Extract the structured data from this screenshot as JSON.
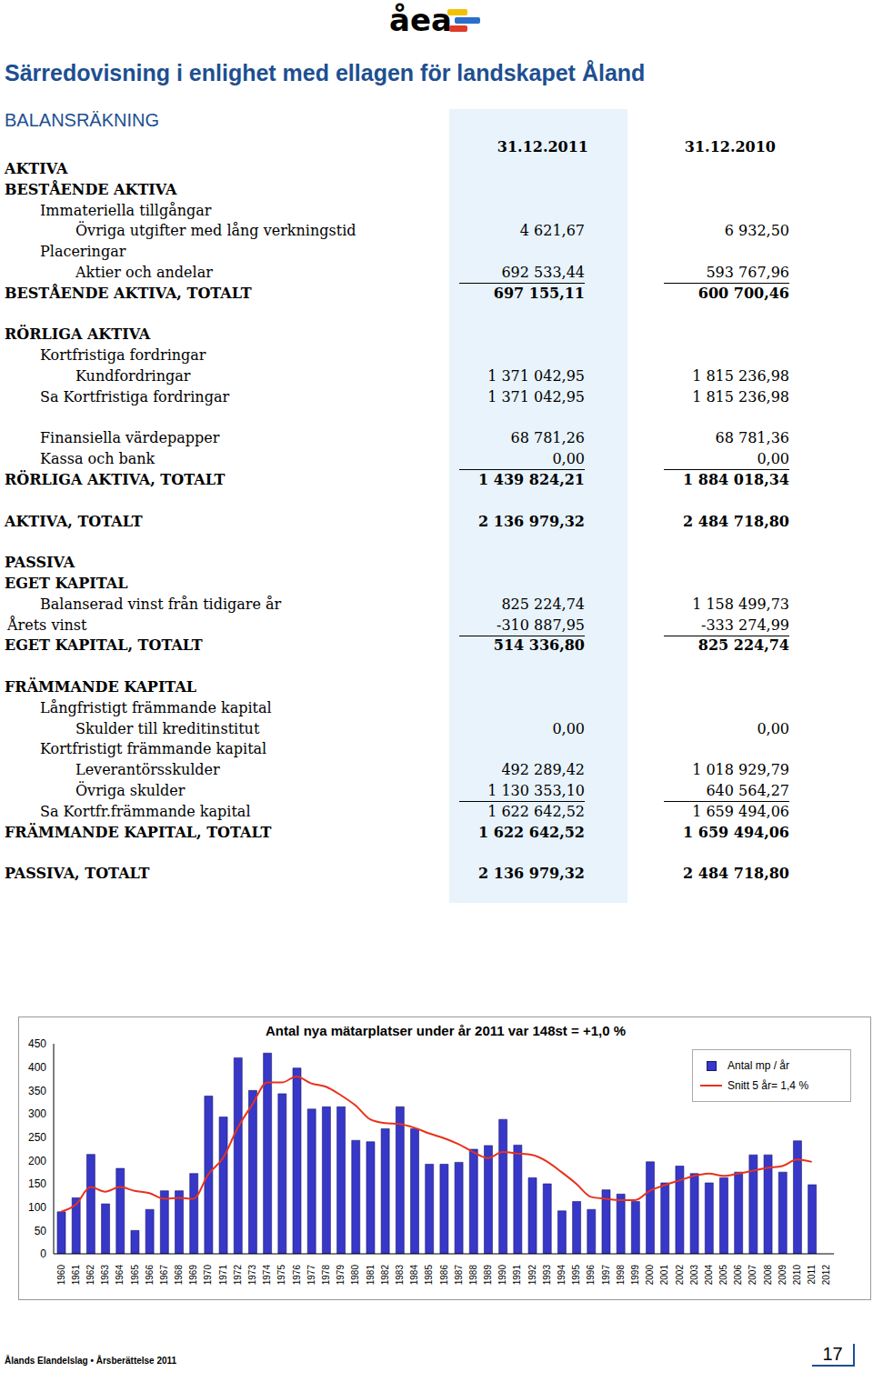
{
  "header": {
    "logo": "åea",
    "title": "Särredovisning i enlighet med ellagen för landskapet Åland",
    "subtitle": "BALANSRÄKNING"
  },
  "table": {
    "columns": [
      "31.12.2011",
      "31.12.2010"
    ],
    "rows": [
      {
        "label": "AKTIVA",
        "kind": "section"
      },
      {
        "label": "BESTÅENDE AKTIVA",
        "kind": "section"
      },
      {
        "label": "Immateriella tillgångar",
        "kind": "group"
      },
      {
        "label": "Övriga utgifter med lång verkningstid",
        "kind": "item",
        "values": [
          "4 621,67",
          "6 932,50"
        ]
      },
      {
        "label": "Placeringar",
        "kind": "group"
      },
      {
        "label": "Aktier och andelar",
        "kind": "item",
        "values": [
          "692 533,44",
          "593 767,96"
        ],
        "rule": true
      },
      {
        "label": "BESTÅENDE AKTIVA, TOTALT",
        "kind": "total",
        "values": [
          "697 155,11",
          "600 700,46"
        ]
      },
      {
        "label": "RÖRLIGA AKTIVA",
        "kind": "section",
        "gap": true
      },
      {
        "label": "Kortfristiga fordringar",
        "kind": "group"
      },
      {
        "label": "Kundfordringar",
        "kind": "item",
        "values": [
          "1 371 042,95",
          "1 815 236,98"
        ]
      },
      {
        "label": "Sa Kortfristiga fordringar",
        "kind": "group",
        "values": [
          "1 371 042,95",
          "1 815 236,98"
        ]
      },
      {
        "label": "Finansiella värdepapper",
        "kind": "group",
        "values": [
          "68 781,26",
          "68 781,36"
        ],
        "gap": true
      },
      {
        "label": "Kassa och bank",
        "kind": "group",
        "values": [
          "0,00",
          "0,00"
        ],
        "rule": true
      },
      {
        "label": "RÖRLIGA AKTIVA, TOTALT",
        "kind": "total",
        "values": [
          "1 439 824,21",
          "1 884 018,34"
        ]
      },
      {
        "label": "AKTIVA, TOTALT",
        "kind": "total",
        "values": [
          "2 136 979,32",
          "2 484 718,80"
        ],
        "gap": true
      },
      {
        "label": "PASSIVA",
        "kind": "section",
        "gap": true
      },
      {
        "label": "EGET KAPITAL",
        "kind": "section"
      },
      {
        "label": "Balanserad vinst från tidigare år",
        "kind": "group",
        "values": [
          "825 224,74",
          "1 158 499,73"
        ]
      },
      {
        "label": "Årets vinst",
        "kind": "plain",
        "values": [
          "-310 887,95",
          "-333 274,99"
        ],
        "rule": true
      },
      {
        "label": "EGET KAPITAL, TOTALT",
        "kind": "total",
        "values": [
          "514 336,80",
          "825 224,74"
        ]
      },
      {
        "label": "FRÄMMANDE KAPITAL",
        "kind": "section",
        "gap": true
      },
      {
        "label": "Långfristigt främmande kapital",
        "kind": "group"
      },
      {
        "label": "Skulder till kreditinstitut",
        "kind": "item",
        "values": [
          "0,00",
          "0,00"
        ]
      },
      {
        "label": "Kortfristigt främmande kapital",
        "kind": "group"
      },
      {
        "label": "Leverantörsskulder",
        "kind": "item",
        "values": [
          "492 289,42",
          "1 018 929,79"
        ]
      },
      {
        "label": "Övriga skulder",
        "kind": "item",
        "values": [
          "1 130 353,10",
          "640 564,27"
        ],
        "rule": true
      },
      {
        "label": "Sa Kortfr.främmande kapital",
        "kind": "group",
        "values": [
          "1 622 642,52",
          "1 659 494,06"
        ]
      },
      {
        "label": "FRÄMMANDE KAPITAL, TOTALT",
        "kind": "total",
        "values": [
          "1 622 642,52",
          "1 659 494,06"
        ]
      },
      {
        "label": "PASSIVA, TOTALT",
        "kind": "total",
        "values": [
          "2 136 979,32",
          "2 484 718,80"
        ],
        "gap": true
      }
    ]
  },
  "chart_data": {
    "type": "bar",
    "title": "Antal nya mätarplatser under år 2011 var 148st = +1,0 %",
    "categories": [
      "1960",
      "1961",
      "1962",
      "1963",
      "1964",
      "1965",
      "1966",
      "1967",
      "1968",
      "1969",
      "1970",
      "1971",
      "1972",
      "1973",
      "1974",
      "1975",
      "1976",
      "1977",
      "1978",
      "1979",
      "1980",
      "1981",
      "1982",
      "1983",
      "1984",
      "1985",
      "1986",
      "1987",
      "1988",
      "1989",
      "1990",
      "1991",
      "1992",
      "1993",
      "1994",
      "1995",
      "1996",
      "1997",
      "1998",
      "1999",
      "2000",
      "2001",
      "2002",
      "2003",
      "2004",
      "2005",
      "2006",
      "2007",
      "2008",
      "2009",
      "2010",
      "2011",
      "2012"
    ],
    "series": [
      {
        "name": "Antal mp / år",
        "type": "bar",
        "color": "#3737c8",
        "values": [
          90,
          120,
          213,
          107,
          183,
          50,
          95,
          135,
          135,
          172,
          338,
          293,
          420,
          350,
          430,
          343,
          398,
          310,
          315,
          315,
          243,
          240,
          268,
          315,
          268,
          192,
          192,
          196,
          224,
          232,
          288,
          233,
          163,
          150,
          92,
          112,
          95,
          137,
          128,
          112,
          197,
          152,
          188,
          172,
          152,
          163,
          175,
          212,
          212,
          175,
          242,
          148,
          null
        ]
      },
      {
        "name": "Snitt 5 år= 1,4 %",
        "type": "line",
        "color": "#e8321e",
        "values": [
          90,
          105,
          143,
          133,
          143,
          135,
          130,
          118,
          120,
          118,
          170,
          205,
          270,
          320,
          367,
          367,
          380,
          365,
          358,
          340,
          318,
          288,
          280,
          278,
          270,
          258,
          248,
          235,
          218,
          205,
          218,
          215,
          212,
          198,
          175,
          150,
          122,
          118,
          115,
          115,
          135,
          147,
          157,
          167,
          172,
          167,
          172,
          178,
          184,
          188,
          202,
          197,
          null
        ]
      }
    ],
    "ylim": [
      0,
      450
    ],
    "yticks": [
      0,
      50,
      100,
      150,
      200,
      250,
      300,
      350,
      400,
      450
    ],
    "grid": false,
    "legend": "upper right"
  },
  "footer": {
    "text": "Ålands Elandelslag • Årsberättelse 2011",
    "page": "17"
  }
}
